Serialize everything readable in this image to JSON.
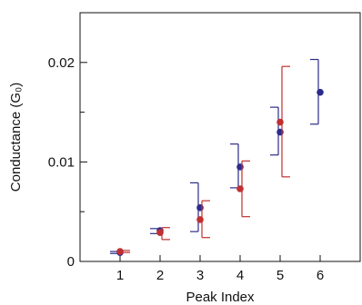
{
  "chart_data": {
    "type": "scatter",
    "xlabel": "Peak Index",
    "ylabel": "Conductance (G₀)",
    "xlim": [
      0,
      7
    ],
    "ylim": [
      0,
      0.025
    ],
    "x_ticks": [
      {
        "value": 1,
        "label": "1"
      },
      {
        "value": 2,
        "label": "2"
      },
      {
        "value": 3,
        "label": "3"
      },
      {
        "value": 4,
        "label": "4"
      },
      {
        "value": 5,
        "label": "5"
      },
      {
        "value": 6,
        "label": "6"
      }
    ],
    "y_ticks": [
      {
        "value": 0,
        "label": "0"
      },
      {
        "value": 0.01,
        "label": "0.01"
      },
      {
        "value": 0.02,
        "label": "0.02"
      }
    ],
    "y_minor_ticks": [
      0.005,
      0.015
    ],
    "grid": false,
    "series": [
      {
        "color": "#2b2b8c",
        "error_bar_side": "left",
        "points": [
          {
            "x": 1,
            "y": 0.0009,
            "low": 0.0008,
            "high": 0.001
          },
          {
            "x": 2,
            "y": 0.0031,
            "low": 0.0028,
            "high": 0.0033
          },
          {
            "x": 3,
            "y": 0.0054,
            "low": 0.003,
            "high": 0.0079
          },
          {
            "x": 4,
            "y": 0.0095,
            "low": 0.0074,
            "high": 0.0118
          },
          {
            "x": 5,
            "y": 0.013,
            "low": 0.0107,
            "high": 0.0155
          },
          {
            "x": 6,
            "y": 0.017,
            "low": 0.0138,
            "high": 0.0203
          }
        ]
      },
      {
        "color": "#c03030",
        "error_bar_side": "right",
        "points": [
          {
            "x": 1,
            "y": 0.001,
            "low": 0.0009,
            "high": 0.0011
          },
          {
            "x": 2,
            "y": 0.0029,
            "low": 0.0022,
            "high": 0.0034
          },
          {
            "x": 3,
            "y": 0.0042,
            "low": 0.0024,
            "high": 0.0061
          },
          {
            "x": 4,
            "y": 0.0073,
            "low": 0.0045,
            "high": 0.0101
          },
          {
            "x": 5,
            "y": 0.014,
            "low": 0.0085,
            "high": 0.0196
          }
        ]
      }
    ]
  }
}
